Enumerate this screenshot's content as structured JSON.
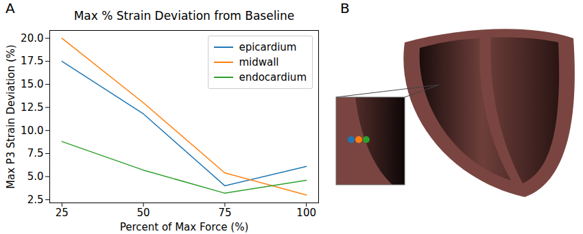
{
  "chart_data": {
    "type": "line",
    "title": "Max % Strain Deviation from Baseline",
    "x_label": "Percent of Max Force (%)",
    "y_label": "Max P3 Strain Deviation (%)",
    "x": [
      25,
      50,
      75,
      100
    ],
    "series": [
      {
        "name": "epicardium",
        "color": "#1f77b4",
        "values": [
          17.5,
          11.8,
          4.0,
          6.1
        ]
      },
      {
        "name": "midwall",
        "color": "#ff7f0e",
        "values": [
          20.0,
          13.0,
          5.4,
          3.0
        ]
      },
      {
        "name": "endocardium",
        "color": "#2ca02c",
        "values": [
          8.8,
          5.7,
          3.2,
          4.6
        ]
      }
    ],
    "xlim": [
      21.25,
      103.75
    ],
    "xticks": [
      25,
      50,
      75,
      100
    ],
    "ylim": [
      2.15,
      20.85
    ],
    "yticks": [
      2.5,
      {
        "value": 5,
        "label": "5.0"
      },
      7.5,
      {
        "value": 10,
        "label": "10.0"
      },
      12.5,
      {
        "value": 15,
        "label": "15.0"
      },
      17.5,
      {
        "value": 20,
        "label": "20.0"
      }
    ],
    "grid": false,
    "legend": "upper right"
  },
  "panel_labels": [
    "A",
    "B"
  ]
}
